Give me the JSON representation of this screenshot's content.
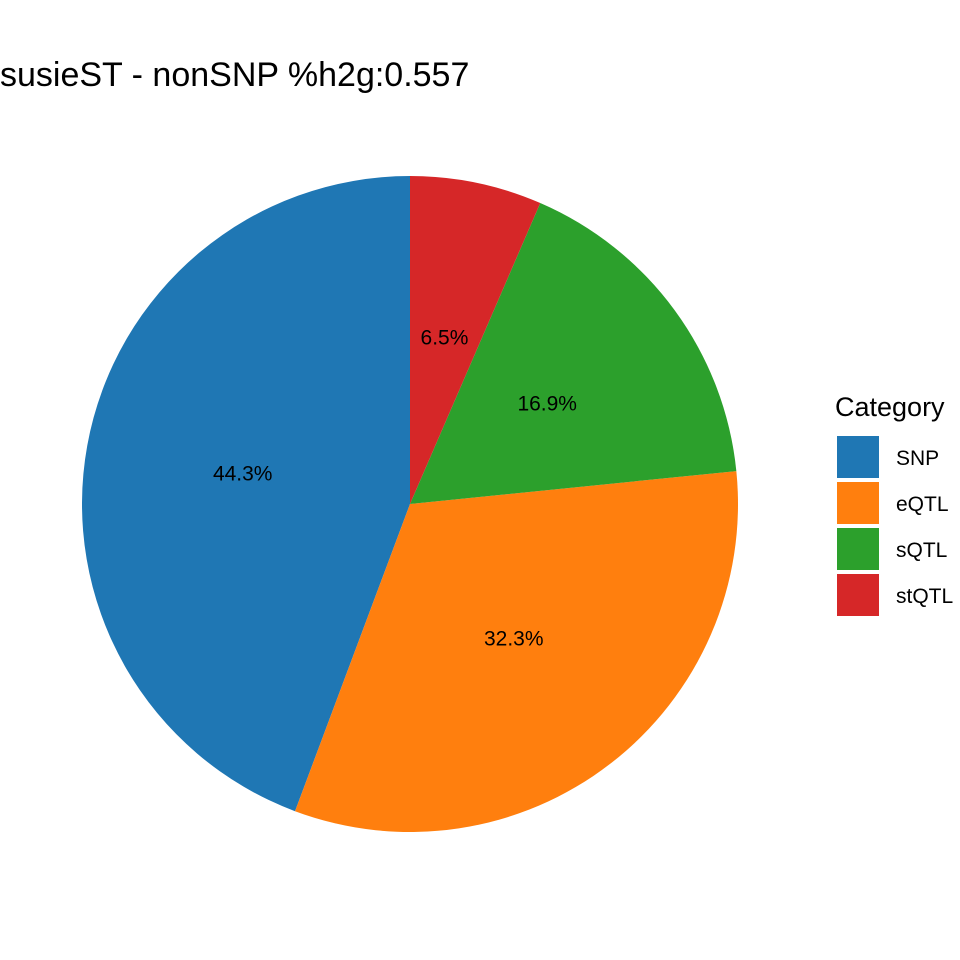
{
  "chart_data": {
    "type": "pie",
    "title": "susieST - nonSNP %h2g:0.557",
    "legend": {
      "title": "Category",
      "placement": "right"
    },
    "slices": [
      {
        "name": "SNP",
        "value": 44.3,
        "label": "44.3%",
        "color": "#1F77B4"
      },
      {
        "name": "eQTL",
        "value": 32.3,
        "label": "32.3%",
        "color": "#FF7F0E"
      },
      {
        "name": "sQTL",
        "value": 16.9,
        "label": "16.9%",
        "color": "#2CA02C"
      },
      {
        "name": "stQTL",
        "value": 6.5,
        "label": "6.5%",
        "color": "#D62728"
      }
    ]
  }
}
